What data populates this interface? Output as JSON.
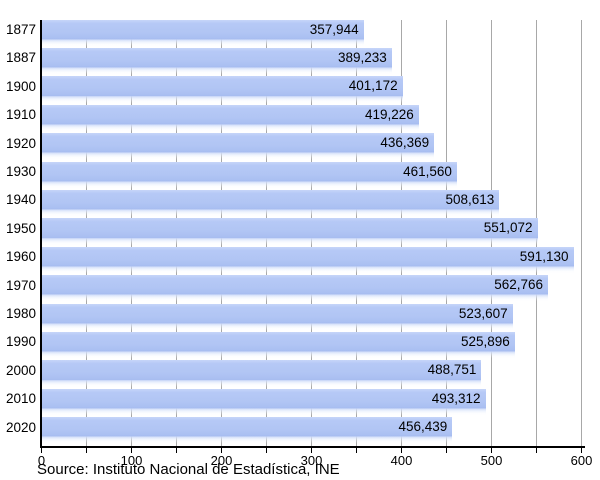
{
  "chart_data": {
    "type": "bar",
    "orientation": "horizontal",
    "title": "",
    "xlabel": "",
    "ylabel": "",
    "categories": [
      "1877",
      "1887",
      "1900",
      "1910",
      "1920",
      "1930",
      "1940",
      "1950",
      "1960",
      "1970",
      "1980",
      "1990",
      "2000",
      "2010",
      "2020"
    ],
    "values": [
      357944,
      389233,
      401172,
      419226,
      436369,
      461560,
      508613,
      551072,
      591130,
      562766,
      523607,
      525896,
      488751,
      493312,
      456439
    ],
    "value_labels": [
      "357,944",
      "389,233",
      "401,172",
      "419,226",
      "436,369",
      "461,560",
      "508,613",
      "551,072",
      "591,130",
      "562,766",
      "523,607",
      "525,896",
      "488,751",
      "493,312",
      "456,439"
    ],
    "xlim": [
      0,
      600
    ],
    "x_tick_labels": [
      "0",
      "100",
      "200",
      "300",
      "400",
      "500",
      "600"
    ],
    "x_major_tick_step": 100,
    "x_minor_tick_step": 50,
    "grid": "vertical gridlines every 50, drawn behind bars",
    "legend": "none",
    "bar_color": "#b1c5f4",
    "grid_color": "#a8a8a8",
    "axis_color": "#000000",
    "label_color": "#000000",
    "units_note": "axis values in thousands"
  },
  "source": "Source: Instituto Nacional de Estadística, INE"
}
